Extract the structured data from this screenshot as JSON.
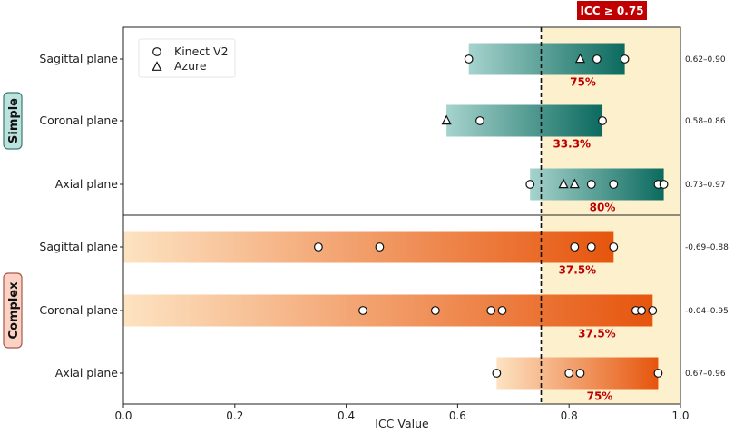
{
  "chart_data": {
    "type": "range-bar",
    "xlabel": "ICC Value",
    "xlim": [
      0.0,
      1.0
    ],
    "xticks": [
      0.0,
      0.2,
      0.4,
      0.6,
      0.8,
      1.0
    ],
    "tick_labels": [
      "0.0",
      "0.2",
      "0.4",
      "0.6",
      "0.8",
      "1.0"
    ],
    "threshold": {
      "value": 0.75,
      "label": "ICC ≥ 0.75"
    },
    "legend": [
      {
        "name": "Kinect V2",
        "marker": "circle"
      },
      {
        "name": "Azure",
        "marker": "triangle"
      }
    ],
    "groups": [
      {
        "name": "Simple",
        "colors": {
          "light": "#a6d3cd",
          "dark": "#0b6a5e",
          "badge_fill": "#bde3de",
          "badge_stroke": "#3b7c74"
        },
        "rows": [
          {
            "label": "Sagittal plane",
            "min": 0.62,
            "max": 0.9,
            "range_text": "0.62–0.90",
            "pct": "75%",
            "kinect": [
              0.62,
              0.85,
              0.9
            ],
            "azure": [
              0.82
            ]
          },
          {
            "label": "Coronal plane",
            "min": 0.58,
            "max": 0.86,
            "range_text": "0.58–0.86",
            "pct": "33.3%",
            "kinect": [
              0.64,
              0.86
            ],
            "azure": [
              0.58
            ]
          },
          {
            "label": "Axial plane",
            "min": 0.73,
            "max": 0.97,
            "range_text": "0.73–0.97",
            "pct": "80%",
            "kinect": [
              0.73,
              0.84,
              0.88,
              0.96,
              0.97
            ],
            "azure": [
              0.79,
              0.81
            ]
          }
        ]
      },
      {
        "name": "Complex",
        "colors": {
          "light": "#fde3c2",
          "dark": "#e6550d",
          "badge_fill": "#fbd2c4",
          "badge_stroke": "#a8584a"
        },
        "rows": [
          {
            "label": "Sagittal plane",
            "min": -0.69,
            "max": 0.88,
            "range_text": "-0.69–0.88",
            "pct": "37.5%",
            "kinect": [
              0.35,
              0.46,
              0.81,
              0.84,
              0.88
            ],
            "azure": []
          },
          {
            "label": "Coronal plane",
            "min": -0.04,
            "max": 0.95,
            "range_text": "-0.04–0.95",
            "pct": "37.5%",
            "kinect": [
              0.43,
              0.56,
              0.66,
              0.68,
              0.92,
              0.93,
              0.95
            ],
            "azure": []
          },
          {
            "label": "Axial plane",
            "min": 0.67,
            "max": 0.96,
            "range_text": "0.67–0.96",
            "pct": "75%",
            "kinect": [
              0.67,
              0.8,
              0.82,
              0.96
            ],
            "azure": []
          }
        ]
      }
    ]
  }
}
